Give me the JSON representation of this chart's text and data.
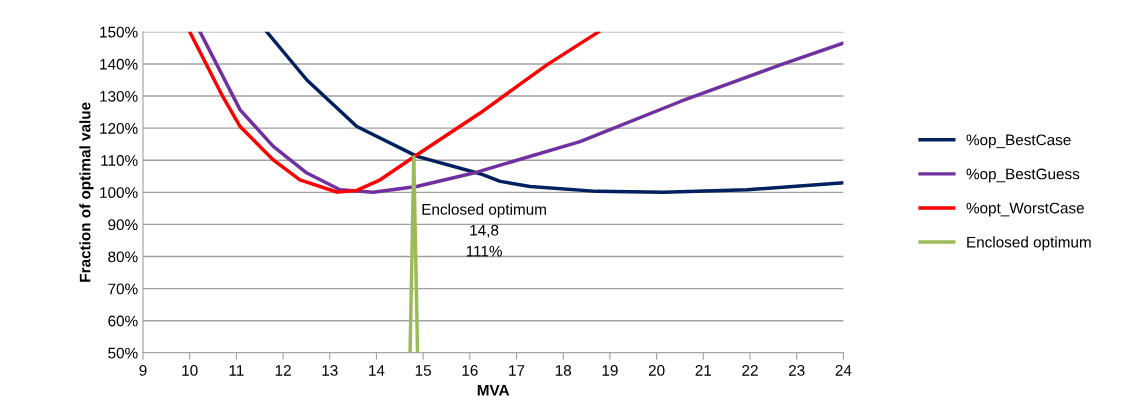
{
  "chart_data": {
    "type": "line",
    "xlabel": "MVA",
    "ylabel": "Fraction of optimal value",
    "xlim": [
      9,
      24
    ],
    "xticks": [
      9,
      10,
      11,
      12,
      13,
      14,
      15,
      16,
      17,
      18,
      19,
      20,
      21,
      22,
      23,
      24
    ],
    "ylim": [
      50,
      150
    ],
    "yticks": [
      {
        "value": 50,
        "label": "50%"
      },
      {
        "value": 60,
        "label": "60%"
      },
      {
        "value": 70,
        "label": "70%"
      },
      {
        "value": 80,
        "label": "80%"
      },
      {
        "value": 90,
        "label": "90%"
      },
      {
        "value": 100,
        "label": "100%"
      },
      {
        "value": 110,
        "label": "110%"
      },
      {
        "value": 120,
        "label": "120%"
      },
      {
        "value": 130,
        "label": "130%"
      },
      {
        "value": 140,
        "label": "140%"
      },
      {
        "value": 150,
        "label": "150%"
      }
    ],
    "grid": "y",
    "legend": "right",
    "marker": "none",
    "line_style": "solid",
    "series": [
      {
        "name": "%op_BestCase",
        "color": "#002060",
        "x": [
          11.65,
          12.51,
          13.58,
          14.87,
          16.22,
          16.65,
          17.29,
          18.72,
          20.14,
          21.94,
          24
        ],
        "values": [
          150,
          135,
          120.5,
          111.2,
          105.8,
          103.4,
          101.8,
          100.3,
          100,
          100.8,
          103
        ]
      },
      {
        "name": "%op_BestGuess",
        "color": "#7030a0",
        "x": [
          10.22,
          11.08,
          11.79,
          12.51,
          13.22,
          13.93,
          14.86,
          16.08,
          18.36,
          20.51,
          22.65,
          24
        ],
        "values": [
          150,
          125.7,
          114.3,
          106,
          100.8,
          100,
          101.8,
          106,
          115.8,
          128.3,
          139.7,
          146.5
        ]
      },
      {
        "name": "%opt_WorstCase",
        "color": "#ff0000",
        "x": [
          10.0,
          10.71,
          11.08,
          11.79,
          12.36,
          13.15,
          13.58,
          14.08,
          14.87,
          16.22,
          17.65,
          18.76
        ],
        "values": [
          150,
          129.8,
          120.5,
          110.1,
          103.9,
          100.1,
          100.6,
          103.9,
          111.7,
          124.7,
          139.7,
          150
        ]
      },
      {
        "name": "Enclosed optimum",
        "color": "#9bbb59",
        "x": [
          14.72,
          14.8,
          14.88
        ],
        "values": [
          50,
          111,
          50
        ]
      }
    ],
    "annotations": [
      "Enclosed optimum\n14,8\n111%"
    ]
  }
}
